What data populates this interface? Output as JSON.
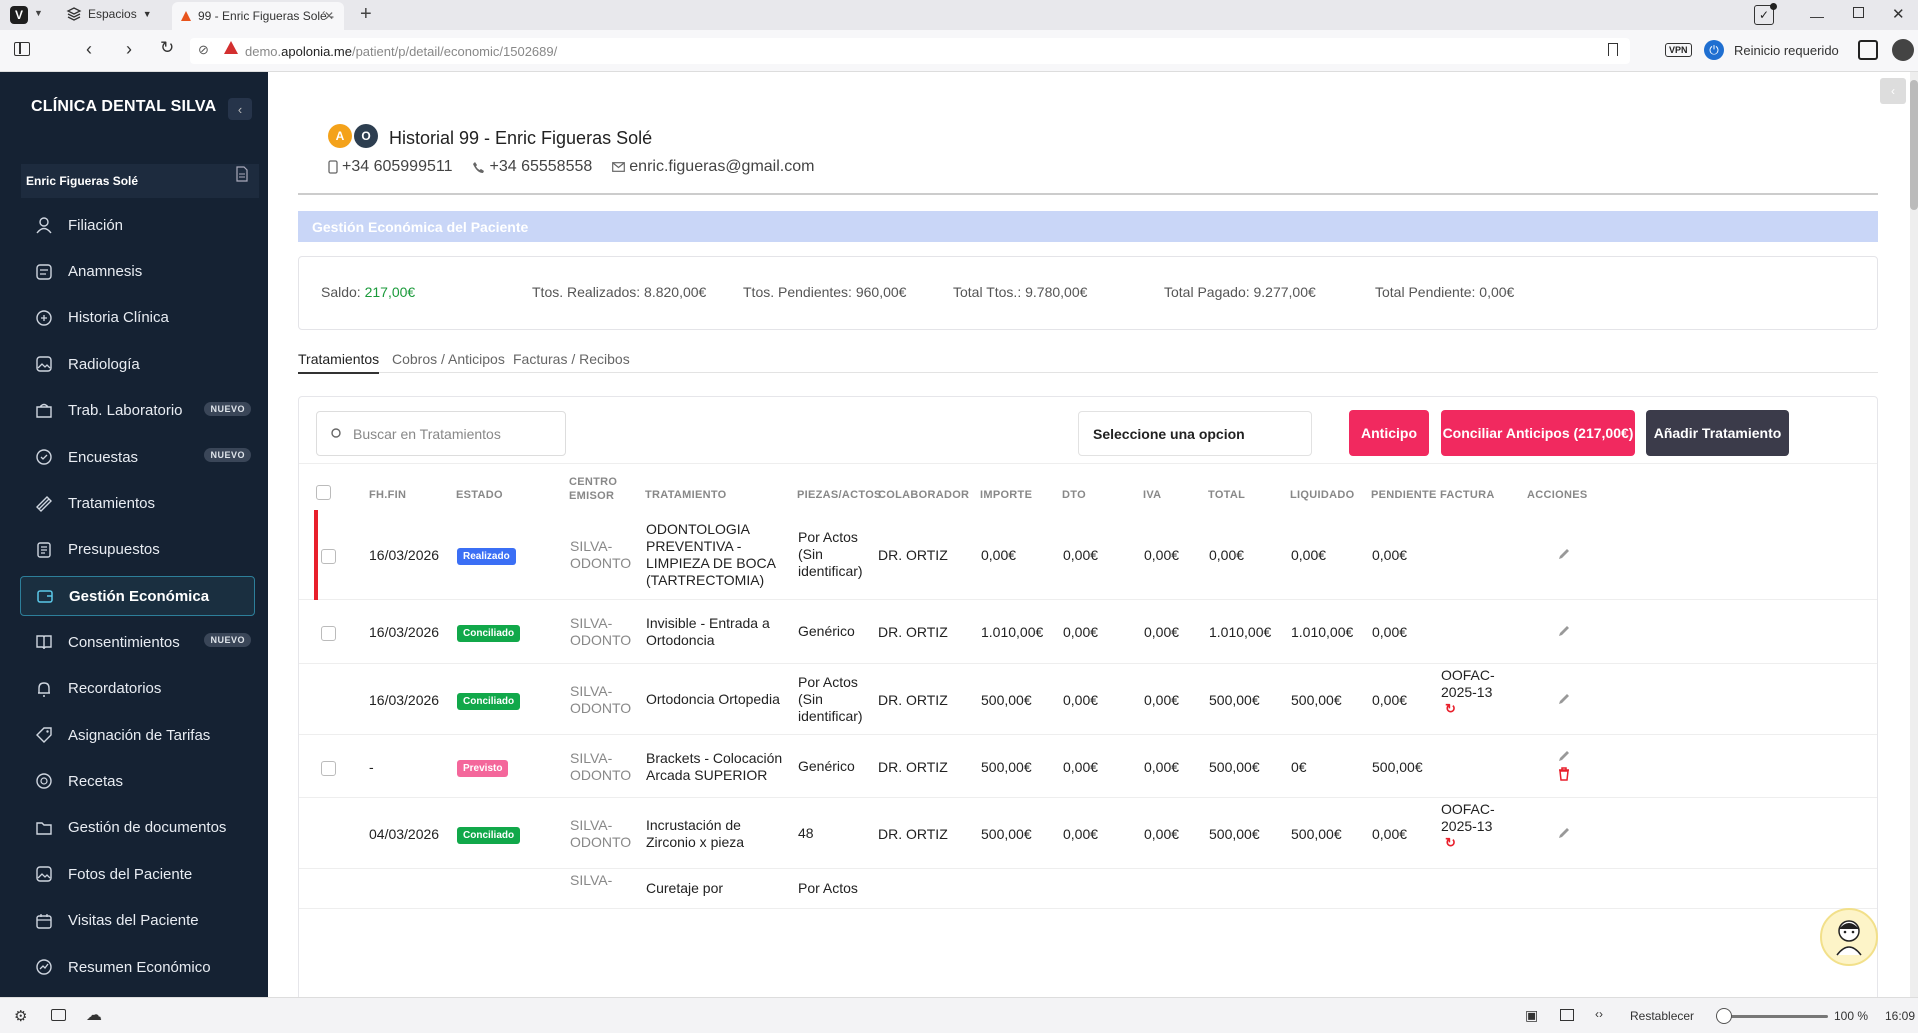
{
  "browser": {
    "spaces_label": "Espacios",
    "tab_title": "99 - Enric Figueras Solé -",
    "url_prefix": "demo.",
    "url_domain": "apolonia.me",
    "url_path": "/patient/p/detail/economic/1502689/",
    "vpn_label": "VPN",
    "restart_label": "Reinicio requerido",
    "reset_label": "Restablecer",
    "zoom": "100 %",
    "clock": "16:09"
  },
  "sidebar": {
    "clinic_name": "CLÍNICA DENTAL SILVA",
    "patient_name": "Enric Figueras Solé",
    "items": [
      {
        "label": "Filiación",
        "icon": "user-icon",
        "badge": ""
      },
      {
        "label": "Anamnesis",
        "icon": "notes-icon",
        "badge": ""
      },
      {
        "label": "Historia Clínica",
        "icon": "clinical-history-icon",
        "badge": ""
      },
      {
        "label": "Radiología",
        "icon": "image-icon",
        "badge": ""
      },
      {
        "label": "Trab. Laboratorio",
        "icon": "lab-icon",
        "badge": "NUEVO"
      },
      {
        "label": "Encuestas",
        "icon": "survey-icon",
        "badge": "NUEVO"
      },
      {
        "label": "Tratamientos",
        "icon": "treatment-icon",
        "badge": ""
      },
      {
        "label": "Presupuestos",
        "icon": "budget-icon",
        "badge": ""
      },
      {
        "label": "Gestión Económica",
        "icon": "wallet-icon",
        "badge": ""
      },
      {
        "label": "Consentimientos",
        "icon": "book-icon",
        "badge": "NUEVO"
      },
      {
        "label": "Recordatorios",
        "icon": "bell-icon",
        "badge": ""
      },
      {
        "label": "Asignación de Tarifas",
        "icon": "tariff-icon",
        "badge": ""
      },
      {
        "label": "Recetas",
        "icon": "recipe-icon",
        "badge": ""
      },
      {
        "label": "Gestión de documentos",
        "icon": "folder-icon",
        "badge": ""
      },
      {
        "label": "Fotos del Paciente",
        "icon": "photo-icon",
        "badge": ""
      },
      {
        "label": "Visitas del Paciente",
        "icon": "calendar-icon",
        "badge": ""
      },
      {
        "label": "Resumen Económico",
        "icon": "chart-icon",
        "badge": ""
      }
    ]
  },
  "header": {
    "avatar_a": "A",
    "avatar_o": "O",
    "title": "Historial 99 - Enric Figueras Solé",
    "mobile": "+34 605999511",
    "phone": "+34 65558558",
    "email": "enric.figueras@gmail.com"
  },
  "section_title": "Gestión Económica del Paciente",
  "summary": {
    "saldo_label": "Saldo:",
    "saldo_value": "217,00€",
    "realizados": "Ttos. Realizados: 8.820,00€",
    "pendientes": "Ttos. Pendientes: 960,00€",
    "total_ttos": "Total Ttos.: 9.780,00€",
    "total_pagado": "Total Pagado: 9.277,00€",
    "total_pendiente": "Total Pendiente: 0,00€"
  },
  "tabs": [
    "Tratamientos",
    "Cobros / Anticipos",
    "Facturas / Recibos"
  ],
  "toolbar": {
    "search_placeholder": "Buscar en Tratamientos",
    "select_value": "Seleccione una opcion",
    "anticipo": "Anticipo",
    "conciliar": "Conciliar Anticipos (217,00€)",
    "add": "Añadir Tratamiento"
  },
  "colors": {
    "accent_pink": "#f1295f",
    "dark_button": "#3b3b4a",
    "realizado": "#3b6ff5",
    "conciliado": "#11a84a",
    "previsto": "#f4679b",
    "sidebar_bg": "#152233"
  },
  "table": {
    "headers": [
      "FH.FIN",
      "ESTADO",
      "CENTRO",
      "EMISOR",
      "TRATAMIENTO",
      "PIEZAS/ACTOS",
      "COLABORADOR",
      "IMPORTE",
      "DTO",
      "IVA",
      "TOTAL",
      "LIQUIDADO",
      "PENDIENTE",
      "FACTURA",
      "ACCIONES"
    ],
    "rows": [
      {
        "date": "16/03/2026",
        "status": "Realizado",
        "centro1": "SILVA-",
        "centro2": "ODONTO",
        "trat": [
          "ODONTOLOGIA",
          "PREVENTIVA -",
          "LIMPIEZA DE BOCA",
          "(TARTRECTOMIA)"
        ],
        "piezas": [
          "Por Actos",
          "(Sin",
          "identificar)"
        ],
        "colab": "DR. ORTIZ",
        "importe": "0,00€",
        "dto": "0,00€",
        "iva": "0,00€",
        "total": "0,00€",
        "liq": "0,00€",
        "pend": "0,00€",
        "fact": [
          "",
          ""
        ]
      },
      {
        "date": "16/03/2026",
        "status": "Conciliado",
        "centro1": "SILVA-",
        "centro2": "ODONTO",
        "trat": [
          "Invisible - Entrada a",
          "Ortodoncia"
        ],
        "piezas": [
          "Genérico"
        ],
        "colab": "DR. ORTIZ",
        "importe": "1.010,00€",
        "dto": "0,00€",
        "iva": "0,00€",
        "total": "1.010,00€",
        "liq": "1.010,00€",
        "pend": "0,00€",
        "fact": [
          "",
          ""
        ]
      },
      {
        "date": "16/03/2026",
        "status": "Conciliado",
        "centro1": "SILVA-",
        "centro2": "ODONTO",
        "trat": [
          "Ortodoncia Ortopedia"
        ],
        "piezas": [
          "Por Actos",
          "(Sin",
          "identificar)"
        ],
        "colab": "DR. ORTIZ",
        "importe": "500,00€",
        "dto": "0,00€",
        "iva": "0,00€",
        "total": "500,00€",
        "liq": "500,00€",
        "pend": "0,00€",
        "fact": [
          "OOFAC-",
          "2025-13"
        ]
      },
      {
        "date": "-",
        "status": "Previsto",
        "centro1": "SILVA-",
        "centro2": "ODONTO",
        "trat": [
          "Brackets - Colocación",
          "Arcada SUPERIOR"
        ],
        "piezas": [
          "Genérico"
        ],
        "colab": "DR. ORTIZ",
        "importe": "500,00€",
        "dto": "0,00€",
        "iva": "0,00€",
        "total": "500,00€",
        "liq": "0€",
        "pend": "500,00€",
        "fact": [
          "",
          ""
        ]
      },
      {
        "date": "04/03/2026",
        "status": "Conciliado",
        "centro1": "SILVA-",
        "centro2": "ODONTO",
        "trat": [
          "Incrustación de",
          "Zirconio x pieza"
        ],
        "piezas": [
          "48"
        ],
        "colab": "DR. ORTIZ",
        "importe": "500,00€",
        "dto": "0,00€",
        "iva": "0,00€",
        "total": "500,00€",
        "liq": "500,00€",
        "pend": "0,00€",
        "fact": [
          "OOFAC-",
          "2025-13"
        ]
      },
      {
        "date": "",
        "status": "",
        "centro1": "SILVA-",
        "centro2": "",
        "trat": [
          "Curetaje por"
        ],
        "piezas": [
          "Por Actos"
        ],
        "colab": "",
        "importe": "",
        "dto": "",
        "iva": "",
        "total": "",
        "liq": "",
        "pend": "",
        "fact": [
          "",
          ""
        ]
      }
    ]
  }
}
